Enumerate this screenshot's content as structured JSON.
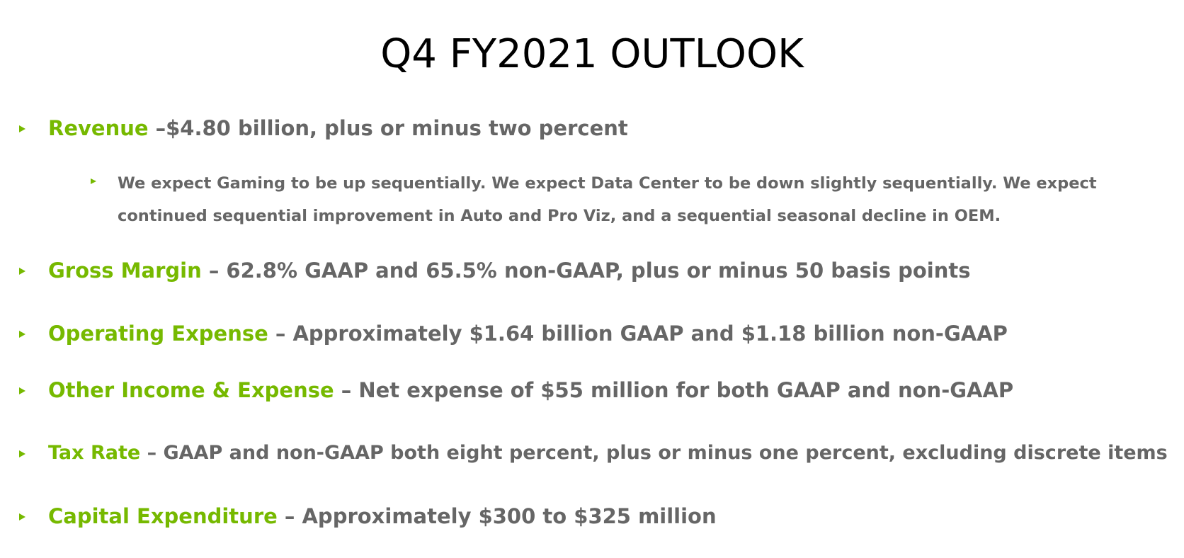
{
  "slide": {
    "title": "Q4 FY2021 OUTLOOK",
    "accent_color": "#76b900",
    "text_color": "#666666",
    "bullet_icon": "green-triangle-bullet",
    "items": [
      {
        "term": "Revenue",
        "text": " –$4.80 billion, plus or minus two percent"
      },
      {
        "term": "Gross Margin",
        "text": " – 62.8% GAAP and 65.5% non-GAAP, plus or minus 50 basis points"
      },
      {
        "term": "Operating Expense",
        "text": " – Approximately $1.64 billion GAAP and $1.18 billion non-GAAP"
      },
      {
        "term": "Other Income & Expense",
        "text": " – Net expense of $55 million for both GAAP and non-GAAP"
      },
      {
        "term": "Tax Rate",
        "text": " – GAAP and non-GAAP both eight percent, plus or minus one percent, excluding discrete items"
      },
      {
        "term": "Capital Expenditure",
        "text": " – Approximately $300 to $325 million"
      }
    ],
    "sub_items": [
      {
        "text": "We expect Gaming to be up sequentially. We expect Data Center to be down slightly sequentially. We expect continued sequential improvement in Auto and Pro Viz, and a sequential seasonal decline in OEM."
      }
    ]
  }
}
